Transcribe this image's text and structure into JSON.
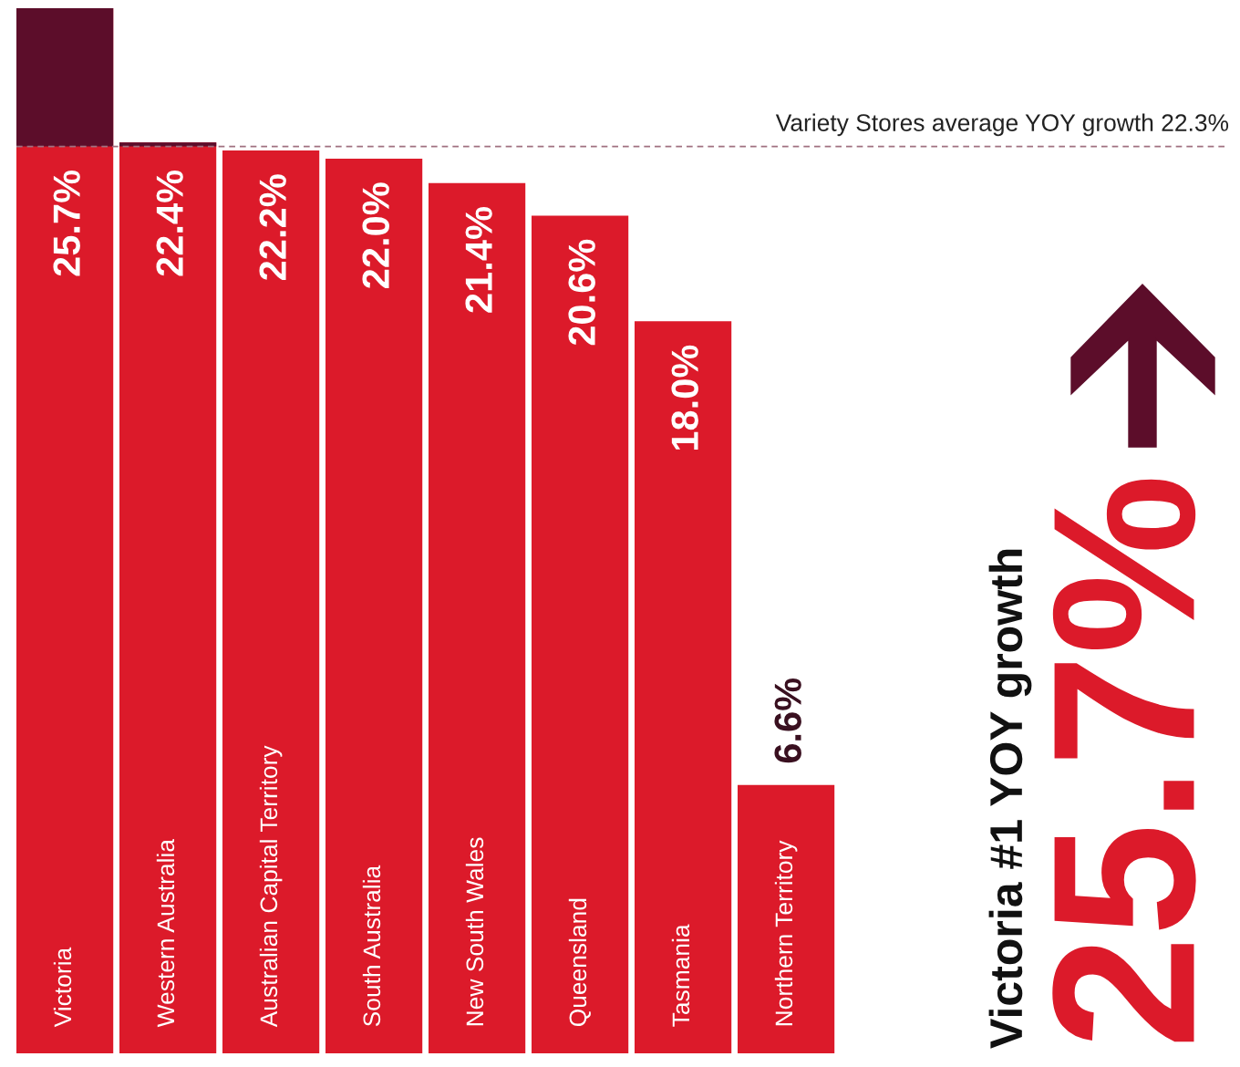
{
  "chart_data": {
    "type": "bar",
    "categories": [
      "Victoria",
      "Western Australia",
      "Australian Capital Territory",
      "South Australia",
      "New South Wales",
      "Queensland",
      "Tasmania",
      "Northern Territory"
    ],
    "series": [
      {
        "color": "#dc1a2a",
        "values": [
          25.7,
          22.4,
          22.2,
          22.0,
          21.4,
          20.6,
          18.0,
          6.6
        ],
        "value_labels": [
          "25.7%",
          "22.4%",
          "22.2%",
          "22.0%",
          "21.4%",
          "20.6%",
          "18.0%",
          "6.6%"
        ]
      }
    ],
    "ref_lines": [
      {
        "axis": "y",
        "value": 22.3,
        "label": "Variety Stores average YOY growth 22.3%",
        "color": "#a07080",
        "line_style": "dashed"
      }
    ],
    "bands": [
      {
        "axis": "y",
        "from": 22.3,
        "to": 25.7,
        "color": "#5c0d2a"
      }
    ],
    "annotations": [
      "Victoria #1 YOY growth",
      "25.7%"
    ]
  }
}
